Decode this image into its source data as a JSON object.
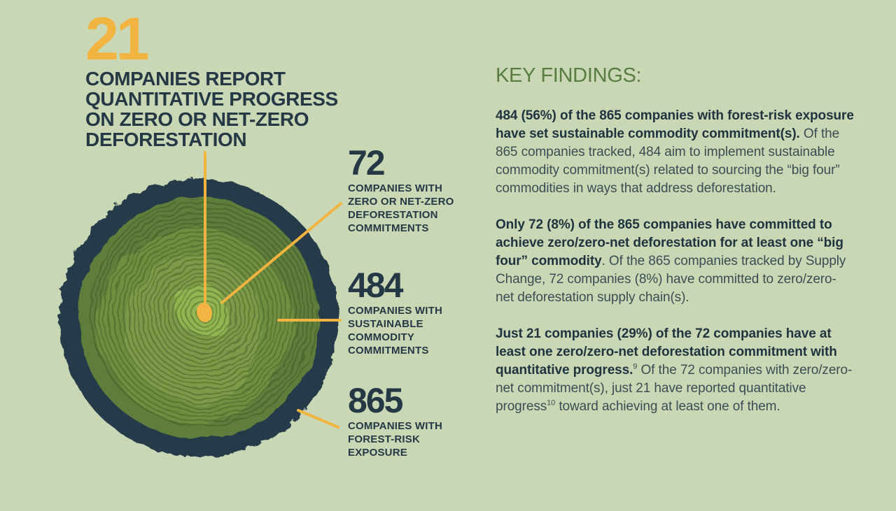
{
  "colors": {
    "background": "#CAD7B5",
    "dark_navy": "#243845",
    "accent_yellow": "#F2B440",
    "findings_green": "#597C40",
    "bark": "#263B49",
    "ring_outer": "#5E7D3A",
    "ring_mid": "#6F8E41",
    "ring_inner": "#7C9A47",
    "ring_center": "#93B551",
    "pith_yellow": "#F2B544"
  },
  "headline": {
    "value": "21",
    "lines": [
      "COMPANIES REPORT",
      "QUANTITATIVE PROGRESS",
      "ON ZERO OR NET-ZERO",
      "DEFORESTATION"
    ]
  },
  "callouts": [
    {
      "value": "72",
      "label_lines": [
        "COMPANIES WITH",
        "ZERO OR NET-ZERO",
        "DEFORESTATION",
        "COMMITMENTS"
      ]
    },
    {
      "value": "484",
      "label_lines": [
        "COMPANIES WITH",
        "SUSTAINABLE",
        "COMMODITY",
        "COMMITMENTS"
      ]
    },
    {
      "value": "865",
      "label_lines": [
        "COMPANIES WITH",
        "FOREST-RISK",
        "EXPOSURE"
      ]
    }
  ],
  "key_findings": {
    "heading": "KEY FINDINGS:",
    "paragraphs": [
      {
        "bold": "484 (56%) of the 865 companies with forest-risk exposure have set sustainable commodity commitment(s).",
        "regular": " Of the 865 companies tracked, 484 aim to implement sustainable commodity commitment(s) related to sourcing the “big four” commodities in ways that address deforestation."
      },
      {
        "bold": "Only 72 (8%) of the 865 companies have committed to achieve zero/zero-net deforestation for at least one “big four” commodity",
        "regular": ". Of the 865 companies tracked by Supply Change, 72 companies (8%) have committed to zero/zero-net deforestation supply chain(s)."
      },
      {
        "bold": "Just 21 companies (29%) of the 72 companies have at least one zero/zero-net deforestation commitment with quantitative progress.",
        "sup_a": "9",
        "regular": " Of the 72 companies with zero/zero-net commitment(s), just 21 have reported quantitative progress",
        "sup_b": "10",
        "regular_b": " toward achieving at least one of them."
      }
    ]
  },
  "chart_data": {
    "type": "pie",
    "subtype": "concentric-tree-ring-infographic",
    "title": "21 companies report quantitative progress on zero or net-zero deforestation",
    "categories": [
      "Companies with forest-risk exposure",
      "Companies with sustainable commodity commitments",
      "Companies with zero or net-zero deforestation commitments",
      "Companies report quantitative progress on zero or net-zero deforestation"
    ],
    "values": [
      865,
      484,
      72,
      21
    ],
    "annotations": [
      "484 = 56% of 865",
      "72 = 8% of 865",
      "21 = 29% of 72"
    ],
    "layout": "nested rings of a tree cross-section; larger counts drawn as outer zones, labels connected by yellow callout lines"
  }
}
